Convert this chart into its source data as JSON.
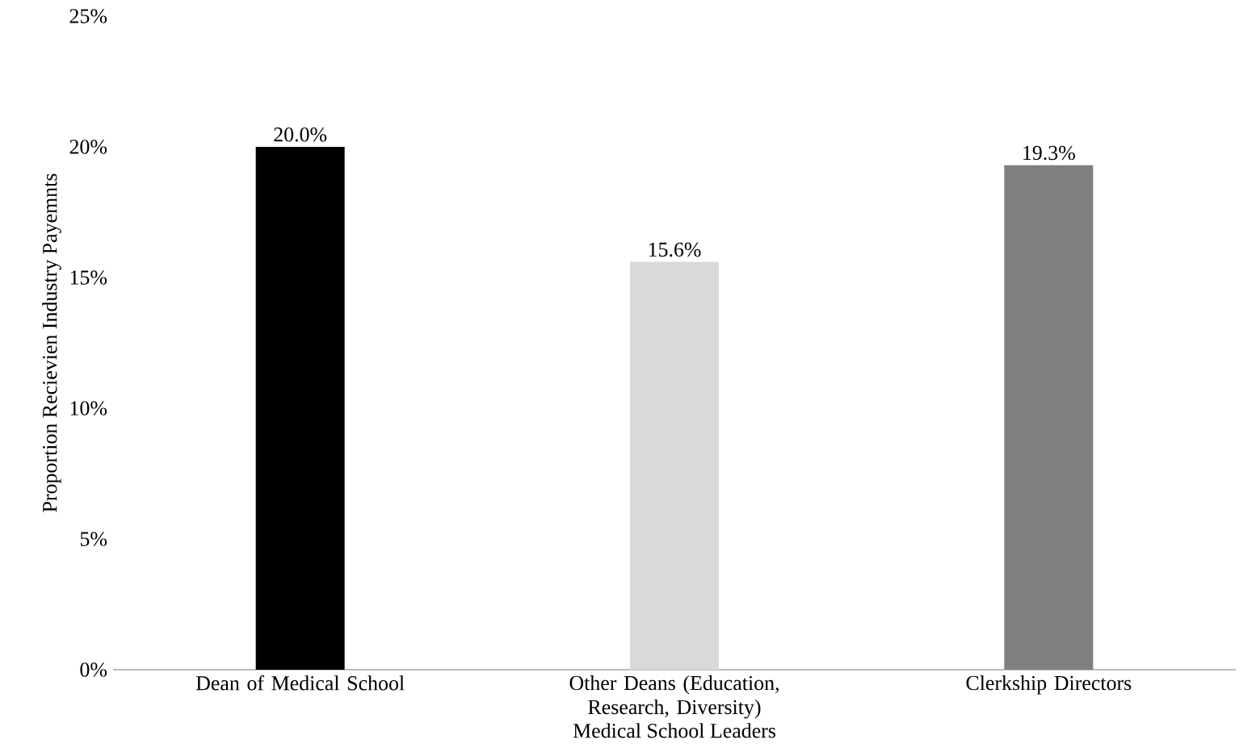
{
  "chart_data": {
    "type": "bar",
    "xlabel": "Medical School Leaders",
    "ylabel": "Proportion Recievien Industry Payemnts",
    "categories": [
      "Dean of Medical School",
      "Other Deans (Education, Research, Diversity)",
      "Clerkship Directors"
    ],
    "values": [
      20.0,
      15.6,
      19.3
    ],
    "colors": [
      "#000000",
      "#d9d9d9",
      "#808080"
    ],
    "value_labels": [
      "20.0%",
      "15.6%",
      "19.3%"
    ],
    "ylim": [
      0,
      25
    ],
    "yticks": [
      {
        "value": 0,
        "label": "0%"
      },
      {
        "value": 5,
        "label": "5%"
      },
      {
        "value": 10,
        "label": "10%"
      },
      {
        "value": 15,
        "label": "15%"
      },
      {
        "value": 20,
        "label": "20%"
      },
      {
        "value": 25,
        "label": "25%"
      }
    ],
    "grid": false
  }
}
